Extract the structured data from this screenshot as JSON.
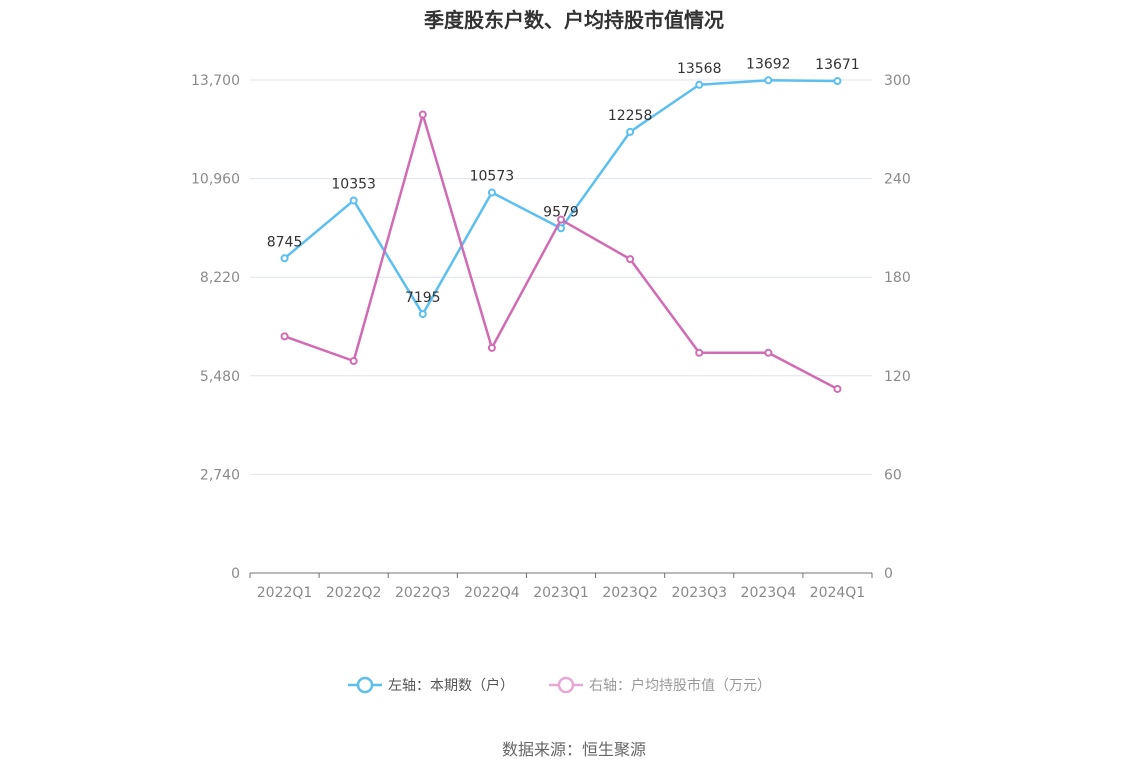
{
  "chart_data": {
    "type": "line",
    "title": "季度股东户数、户均持股市值情况",
    "categories": [
      "2022Q1",
      "2022Q2",
      "2022Q3",
      "2022Q4",
      "2023Q1",
      "2023Q2",
      "2023Q3",
      "2023Q4",
      "2024Q1"
    ],
    "left_axis": {
      "ticks": [
        "0",
        "2,740",
        "5,480",
        "8,220",
        "10,960",
        "13,700"
      ],
      "ylim": [
        0,
        13700
      ]
    },
    "right_axis": {
      "ticks": [
        "0",
        "60",
        "120",
        "180",
        "240",
        "300"
      ],
      "ylim": [
        0,
        300
      ]
    },
    "series": [
      {
        "name": "左轴：本期数（户）",
        "axis": "left",
        "color": "#5bbfef",
        "values": [
          8745,
          10353,
          7195,
          10573,
          9579,
          12258,
          13568,
          13692,
          13671
        ],
        "labels": [
          "8745",
          "10353",
          "7195",
          "10573",
          "9579",
          "12258",
          "13568",
          "13692",
          "13671"
        ]
      },
      {
        "name": "右轴：户均持股市值（万元）",
        "axis": "right",
        "color": "#d06bb4",
        "values": [
          144,
          129,
          279,
          137,
          215,
          191,
          134,
          134,
          112
        ]
      }
    ],
    "grid": true,
    "legend_position": "bottom"
  },
  "source": "数据来源：恒生聚源"
}
